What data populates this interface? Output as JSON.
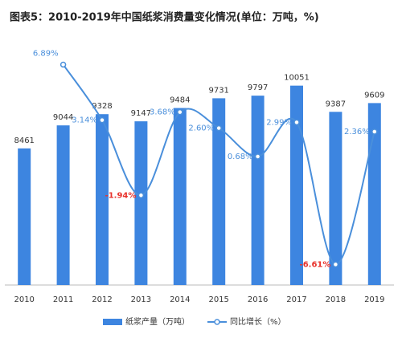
{
  "chart_data": {
    "type": "bar_line",
    "title": "图表5：2010-2019年中国纸浆消费量变化情况(单位：万吨，%)",
    "categories": [
      "2010",
      "2011",
      "2012",
      "2013",
      "2014",
      "2015",
      "2016",
      "2017",
      "2018",
      "2019"
    ],
    "series": [
      {
        "name": "纸浆产量（万吨）",
        "type": "bar",
        "color": "#3d85e0",
        "values": [
          8461,
          9044,
          9328,
          9147,
          9484,
          9731,
          9797,
          10051,
          9387,
          9609
        ]
      },
      {
        "name": "同比增长（%）",
        "type": "line",
        "axis": "y2",
        "color": "#4a8fdb",
        "negative_color": "#e8312b",
        "values": [
          null,
          6.89,
          3.14,
          -1.94,
          3.68,
          2.6,
          0.68,
          2.99,
          -6.61,
          2.36
        ],
        "value_labels": [
          null,
          "6.89%",
          "3.14%",
          "-1.94%",
          "3.68%",
          "2.60%",
          "0.68%",
          "2.99%",
          "-6.61%",
          "2.36%"
        ]
      }
    ],
    "ylim": [
      5000,
      11000
    ],
    "y2lim": [
      -8,
      8
    ],
    "legend": "bottom"
  }
}
